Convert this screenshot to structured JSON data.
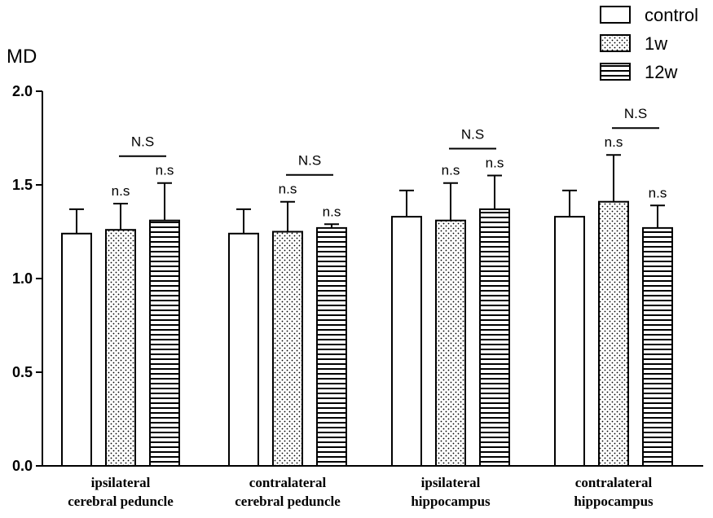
{
  "chart_data": {
    "type": "bar",
    "ylabel": "MD",
    "xlabel": "",
    "ylim": [
      0,
      2.0
    ],
    "yticks": [
      0.0,
      0.5,
      1.0,
      1.5,
      2.0
    ],
    "ytick_labels": [
      "0.0",
      "0.5",
      "1.0",
      "1.5",
      "2.0"
    ],
    "categories": [
      [
        "ipsilateral",
        "cerebral peduncle"
      ],
      [
        "contralateral",
        "cerebral peduncle"
      ],
      [
        "ipsilateral",
        "hippocampus"
      ],
      [
        "contralateral",
        "hippocampus"
      ]
    ],
    "series": [
      {
        "name": "control",
        "pattern": "open",
        "values": [
          1.24,
          1.24,
          1.33,
          1.33
        ],
        "errors": [
          0.13,
          0.13,
          0.14,
          0.14
        ]
      },
      {
        "name": "1w",
        "pattern": "dots",
        "values": [
          1.26,
          1.25,
          1.31,
          1.41
        ],
        "errors": [
          0.14,
          0.16,
          0.2,
          0.25
        ]
      },
      {
        "name": "12w",
        "pattern": "stripes",
        "values": [
          1.31,
          1.27,
          1.37,
          1.27
        ],
        "errors": [
          0.2,
          0.02,
          0.18,
          0.12
        ]
      }
    ],
    "annotations": {
      "bar_labels": [
        [
          "",
          "n.s",
          "n.s"
        ],
        [
          "",
          "n.s",
          "n.s"
        ],
        [
          "",
          "n.s",
          "n.s"
        ],
        [
          "",
          "n.s",
          "n.s"
        ]
      ],
      "group_labels": [
        "N.S",
        "N.S",
        "N.S",
        "N.S"
      ]
    },
    "legend_position": "top-right"
  }
}
